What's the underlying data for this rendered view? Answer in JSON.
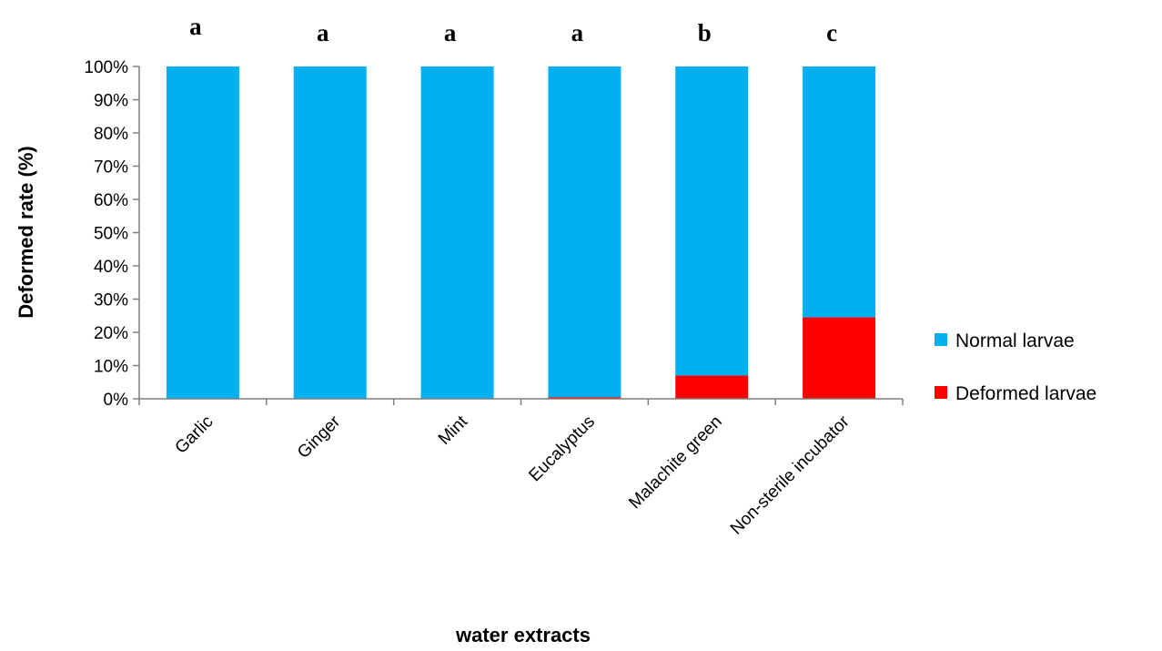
{
  "chart_data": {
    "type": "bar",
    "stacked": true,
    "categories": [
      "Garlic",
      "Ginger",
      "Mint",
      "Eucalyptus",
      "Malachite green",
      "Non-sterile incubator"
    ],
    "series": [
      {
        "name": "Deformed larvae",
        "color": "#ff0000",
        "values": [
          0,
          0,
          0,
          0.5,
          7,
          24.5
        ]
      },
      {
        "name": "Normal larvae",
        "color": "#00b0f0",
        "values": [
          100,
          100,
          100,
          99.5,
          93,
          75.5
        ]
      }
    ],
    "significance_letters": [
      "a",
      "a",
      "a",
      "a",
      "b",
      "c"
    ],
    "xlabel": "water extracts",
    "ylabel": "Deformed rate (%)",
    "ylim": [
      0,
      100
    ],
    "yticks": [
      "0%",
      "10%",
      "20%",
      "30%",
      "40%",
      "50%",
      "60%",
      "70%",
      "80%",
      "90%",
      "100%"
    ],
    "grid": false,
    "legend": {
      "position": "right",
      "entries": [
        "Normal larvae",
        "Deformed larvae"
      ]
    }
  }
}
